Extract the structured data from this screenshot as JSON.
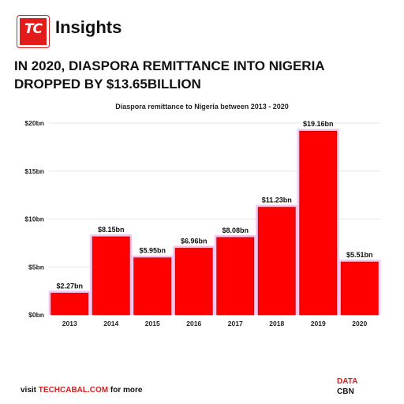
{
  "brand": {
    "logo_text": "TC",
    "name": "Insights"
  },
  "headline": "IN 2020, DIASPORA REMITTANCE INTO NIGERIA DROPPED BY $13.65BILLION",
  "chart_data": {
    "type": "bar",
    "title": "Diaspora remittance to Nigeria between 2013 - 2020",
    "categories": [
      "2013",
      "2014",
      "2015",
      "2016",
      "2017",
      "2018",
      "2019",
      "2020"
    ],
    "values": [
      2.27,
      8.15,
      5.95,
      6.96,
      8.08,
      11.23,
      19.16,
      5.51
    ],
    "data_labels": [
      "$2.27bn",
      "$8.15bn",
      "$5.95bn",
      "$6.96bn",
      "$8.08bn",
      "$11.23bn",
      "$19.16bn",
      "$5.51bn"
    ],
    "y_ticks": [
      0,
      5,
      10,
      15,
      20
    ],
    "y_tick_labels": [
      "$0bn",
      "$5bn",
      "$10bn",
      "$15bn",
      "$20bn"
    ],
    "ylim": [
      0,
      20
    ],
    "xlabel": "",
    "ylabel": "",
    "grid": true,
    "bar_color": "#ff0000",
    "bar_glow_color": "#f3c6ef"
  },
  "footer": {
    "prefix": "visit ",
    "link": "TECHCABAL.COM",
    "suffix": " for more",
    "source_label": "DATA",
    "source_value": "CBN"
  }
}
